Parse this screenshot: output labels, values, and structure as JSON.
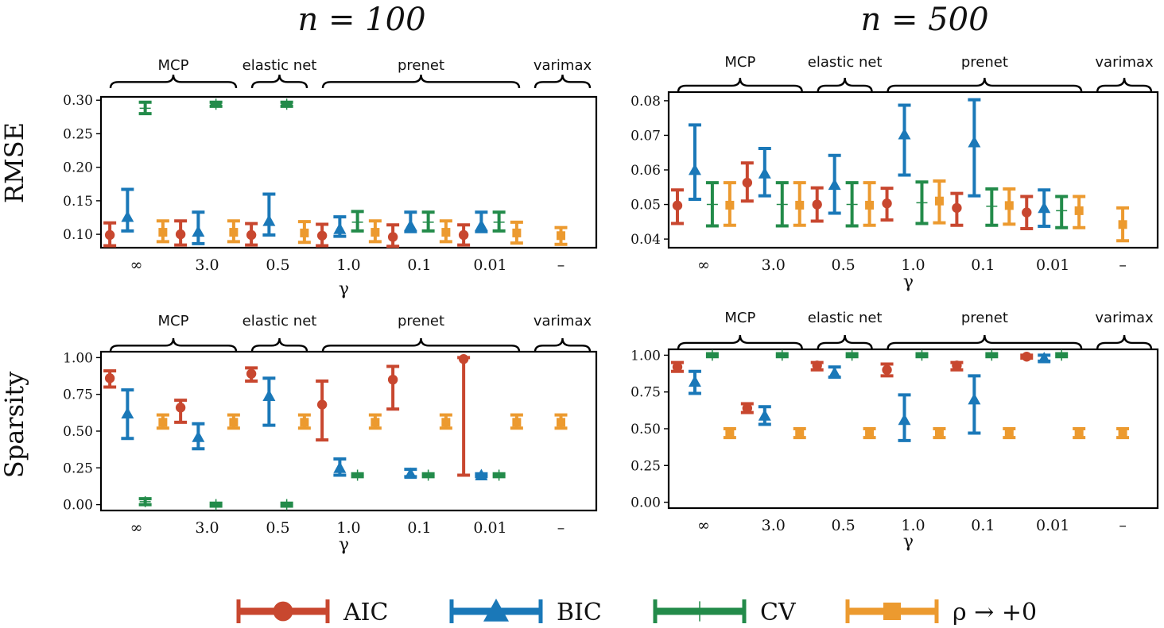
{
  "colors": {
    "AIC": "#c8472f",
    "BIC": "#1a78b8",
    "CV": "#238b4a",
    "rho": "#ec9a2f"
  },
  "legend": [
    {
      "key": "AIC",
      "label": "AIC",
      "marker": "circle"
    },
    {
      "key": "BIC",
      "label": "BIC",
      "marker": "triangle"
    },
    {
      "key": "CV",
      "label": "CV",
      "marker": "plus"
    },
    {
      "key": "rho",
      "label": "ρ → +0",
      "marker": "square"
    }
  ],
  "column_titles": [
    "n = 100",
    "n = 500"
  ],
  "row_labels": [
    "RMSE",
    "Sparsity"
  ],
  "chart_data": [
    {
      "type": "scatter",
      "panel": "RMSE, n = 100",
      "xlabel": "γ",
      "ylabel": "RMSE",
      "ylim": [
        0.08,
        0.305
      ],
      "yticks": [
        "0.10",
        "0.15",
        "0.20",
        "0.25",
        "0.30"
      ],
      "categories": [
        "∞",
        "3.0",
        "0.5",
        "1.0",
        "0.1",
        "0.01",
        "–"
      ],
      "groups": [
        {
          "label": "MCP",
          "from": 0,
          "to": 1
        },
        {
          "label": "elastic net",
          "from": 2,
          "to": 2
        },
        {
          "label": "prenet",
          "from": 3,
          "to": 5
        },
        {
          "label": "varimax",
          "from": 6,
          "to": 6
        }
      ],
      "series": [
        {
          "name": "AIC",
          "points": [
            {
              "x": "∞",
              "y": 0.099,
              "lo": 0.083,
              "hi": 0.117
            },
            {
              "x": "3.0",
              "y": 0.1,
              "lo": 0.084,
              "hi": 0.12
            },
            {
              "x": "0.5",
              "y": 0.099,
              "lo": 0.084,
              "hi": 0.116
            },
            {
              "x": "1.0",
              "y": 0.098,
              "lo": 0.083,
              "hi": 0.115
            },
            {
              "x": "0.1",
              "y": 0.096,
              "lo": 0.082,
              "hi": 0.114
            },
            {
              "x": "0.01",
              "y": 0.099,
              "lo": 0.084,
              "hi": 0.114
            }
          ]
        },
        {
          "name": "BIC",
          "points": [
            {
              "x": "∞",
              "y": 0.126,
              "lo": 0.105,
              "hi": 0.167
            },
            {
              "x": "3.0",
              "y": 0.104,
              "lo": 0.086,
              "hi": 0.133
            },
            {
              "x": "0.5",
              "y": 0.12,
              "lo": 0.099,
              "hi": 0.16
            },
            {
              "x": "1.0",
              "y": 0.108,
              "lo": 0.097,
              "hi": 0.126
            },
            {
              "x": "0.1",
              "y": 0.113,
              "lo": 0.104,
              "hi": 0.133
            },
            {
              "x": "0.01",
              "y": 0.113,
              "lo": 0.104,
              "hi": 0.133
            }
          ]
        },
        {
          "name": "CV",
          "points": [
            {
              "x": "∞",
              "y": 0.288,
              "lo": 0.28,
              "hi": 0.297
            },
            {
              "x": "3.0",
              "y": 0.294,
              "lo": 0.291,
              "hi": 0.297
            },
            {
              "x": "0.5",
              "y": 0.294,
              "lo": 0.291,
              "hi": 0.297
            },
            {
              "x": "1.0",
              "y": 0.118,
              "lo": 0.105,
              "hi": 0.134
            },
            {
              "x": "0.1",
              "y": 0.118,
              "lo": 0.105,
              "hi": 0.133
            },
            {
              "x": "0.01",
              "y": 0.118,
              "lo": 0.105,
              "hi": 0.133
            }
          ]
        },
        {
          "name": "ρ → +0",
          "points": [
            {
              "x": "∞",
              "y": 0.103,
              "lo": 0.089,
              "hi": 0.12
            },
            {
              "x": "3.0",
              "y": 0.103,
              "lo": 0.089,
              "hi": 0.12
            },
            {
              "x": "0.5",
              "y": 0.102,
              "lo": 0.088,
              "hi": 0.119
            },
            {
              "x": "1.0",
              "y": 0.103,
              "lo": 0.089,
              "hi": 0.12
            },
            {
              "x": "0.1",
              "y": 0.103,
              "lo": 0.089,
              "hi": 0.12
            },
            {
              "x": "0.01",
              "y": 0.102,
              "lo": 0.087,
              "hi": 0.118
            },
            {
              "x": "–",
              "y": 0.098,
              "lo": 0.085,
              "hi": 0.11
            }
          ]
        }
      ]
    },
    {
      "type": "scatter",
      "panel": "RMSE, n = 500",
      "xlabel": "γ",
      "ylabel": "RMSE",
      "ylim": [
        0.0375,
        0.0825
      ],
      "yticks": [
        "0.04",
        "0.05",
        "0.06",
        "0.07",
        "0.08"
      ],
      "categories": [
        "∞",
        "3.0",
        "0.5",
        "1.0",
        "0.1",
        "0.01",
        "–"
      ],
      "groups": [
        {
          "label": "MCP",
          "from": 0,
          "to": 1
        },
        {
          "label": "elastic net",
          "from": 2,
          "to": 2
        },
        {
          "label": "prenet",
          "from": 3,
          "to": 5
        },
        {
          "label": "varimax",
          "from": 6,
          "to": 6
        }
      ],
      "series": [
        {
          "name": "AIC",
          "points": [
            {
              "x": "∞",
              "y": 0.0497,
              "lo": 0.0445,
              "hi": 0.0542
            },
            {
              "x": "3.0",
              "y": 0.0563,
              "lo": 0.051,
              "hi": 0.062
            },
            {
              "x": "0.5",
              "y": 0.05,
              "lo": 0.0452,
              "hi": 0.0548
            },
            {
              "x": "1.0",
              "y": 0.0503,
              "lo": 0.0455,
              "hi": 0.0547
            },
            {
              "x": "0.1",
              "y": 0.049,
              "lo": 0.044,
              "hi": 0.0532
            },
            {
              "x": "0.01",
              "y": 0.0477,
              "lo": 0.043,
              "hi": 0.0523
            }
          ]
        },
        {
          "name": "BIC",
          "points": [
            {
              "x": "∞",
              "y": 0.06,
              "lo": 0.0515,
              "hi": 0.073
            },
            {
              "x": "3.0",
              "y": 0.059,
              "lo": 0.0525,
              "hi": 0.0662
            },
            {
              "x": "0.5",
              "y": 0.0557,
              "lo": 0.0475,
              "hi": 0.0642
            },
            {
              "x": "1.0",
              "y": 0.0703,
              "lo": 0.0585,
              "hi": 0.0787
            },
            {
              "x": "0.1",
              "y": 0.068,
              "lo": 0.0525,
              "hi": 0.0803
            },
            {
              "x": "0.01",
              "y": 0.049,
              "lo": 0.0437,
              "hi": 0.0542
            }
          ]
        },
        {
          "name": "CV",
          "points": [
            {
              "x": "∞",
              "y": 0.05,
              "lo": 0.0438,
              "hi": 0.0563
            },
            {
              "x": "3.0",
              "y": 0.05,
              "lo": 0.0438,
              "hi": 0.0563
            },
            {
              "x": "0.5",
              "y": 0.05,
              "lo": 0.0438,
              "hi": 0.0563
            },
            {
              "x": "1.0",
              "y": 0.0505,
              "lo": 0.0445,
              "hi": 0.0565
            },
            {
              "x": "0.1",
              "y": 0.0495,
              "lo": 0.044,
              "hi": 0.0545
            },
            {
              "x": "0.01",
              "y": 0.0482,
              "lo": 0.0433,
              "hi": 0.0523
            }
          ]
        },
        {
          "name": "ρ → +0",
          "points": [
            {
              "x": "∞",
              "y": 0.0498,
              "lo": 0.044,
              "hi": 0.0563
            },
            {
              "x": "3.0",
              "y": 0.0498,
              "lo": 0.044,
              "hi": 0.0563
            },
            {
              "x": "0.5",
              "y": 0.0498,
              "lo": 0.044,
              "hi": 0.0563
            },
            {
              "x": "1.0",
              "y": 0.051,
              "lo": 0.0447,
              "hi": 0.0568
            },
            {
              "x": "0.1",
              "y": 0.0497,
              "lo": 0.0443,
              "hi": 0.0545
            },
            {
              "x": "0.01",
              "y": 0.0482,
              "lo": 0.0433,
              "hi": 0.0523
            },
            {
              "x": "–",
              "y": 0.0442,
              "lo": 0.0395,
              "hi": 0.049
            }
          ]
        }
      ]
    },
    {
      "type": "scatter",
      "panel": "Sparsity, n = 100",
      "xlabel": "γ",
      "ylabel": "Sparsity",
      "ylim": [
        -0.04,
        1.04
      ],
      "yticks": [
        "0.00",
        "0.25",
        "0.50",
        "0.75",
        "1.00"
      ],
      "categories": [
        "∞",
        "3.0",
        "0.5",
        "1.0",
        "0.1",
        "0.01",
        "–"
      ],
      "groups": [
        {
          "label": "MCP",
          "from": 0,
          "to": 1
        },
        {
          "label": "elastic net",
          "from": 2,
          "to": 2
        },
        {
          "label": "prenet",
          "from": 3,
          "to": 5
        },
        {
          "label": "varimax",
          "from": 6,
          "to": 6
        }
      ],
      "series": [
        {
          "name": "AIC",
          "points": [
            {
              "x": "∞",
              "y": 0.86,
              "lo": 0.8,
              "hi": 0.91
            },
            {
              "x": "3.0",
              "y": 0.66,
              "lo": 0.56,
              "hi": 0.71
            },
            {
              "x": "0.5",
              "y": 0.89,
              "lo": 0.84,
              "hi": 0.93
            },
            {
              "x": "1.0",
              "y": 0.68,
              "lo": 0.44,
              "hi": 0.84
            },
            {
              "x": "0.1",
              "y": 0.85,
              "lo": 0.65,
              "hi": 0.94
            },
            {
              "x": "0.01",
              "y": 0.99,
              "lo": 0.2,
              "hi": 1.0
            }
          ]
        },
        {
          "name": "BIC",
          "points": [
            {
              "x": "∞",
              "y": 0.62,
              "lo": 0.45,
              "hi": 0.78
            },
            {
              "x": "3.0",
              "y": 0.46,
              "lo": 0.38,
              "hi": 0.55
            },
            {
              "x": "0.5",
              "y": 0.74,
              "lo": 0.54,
              "hi": 0.86
            },
            {
              "x": "1.0",
              "y": 0.25,
              "lo": 0.2,
              "hi": 0.31
            },
            {
              "x": "0.1",
              "y": 0.21,
              "lo": 0.19,
              "hi": 0.24
            },
            {
              "x": "0.01",
              "y": 0.2,
              "lo": 0.19,
              "hi": 0.21
            }
          ]
        },
        {
          "name": "CV",
          "points": [
            {
              "x": "∞",
              "y": 0.02,
              "lo": 0.0,
              "hi": 0.04
            },
            {
              "x": "3.0",
              "y": 0.0,
              "lo": -0.01,
              "hi": 0.01
            },
            {
              "x": "0.5",
              "y": 0.0,
              "lo": -0.01,
              "hi": 0.01
            },
            {
              "x": "1.0",
              "y": 0.2,
              "lo": 0.19,
              "hi": 0.21
            },
            {
              "x": "0.1",
              "y": 0.2,
              "lo": 0.19,
              "hi": 0.21
            },
            {
              "x": "0.01",
              "y": 0.2,
              "lo": 0.19,
              "hi": 0.21
            }
          ]
        },
        {
          "name": "ρ → +0",
          "points": [
            {
              "x": "∞",
              "y": 0.56,
              "lo": 0.52,
              "hi": 0.61
            },
            {
              "x": "3.0",
              "y": 0.56,
              "lo": 0.52,
              "hi": 0.61
            },
            {
              "x": "0.5",
              "y": 0.56,
              "lo": 0.52,
              "hi": 0.61
            },
            {
              "x": "1.0",
              "y": 0.56,
              "lo": 0.52,
              "hi": 0.61
            },
            {
              "x": "0.1",
              "y": 0.56,
              "lo": 0.52,
              "hi": 0.61
            },
            {
              "x": "0.01",
              "y": 0.56,
              "lo": 0.52,
              "hi": 0.61
            },
            {
              "x": "–",
              "y": 0.56,
              "lo": 0.52,
              "hi": 0.61
            }
          ]
        }
      ]
    },
    {
      "type": "scatter",
      "panel": "Sparsity, n = 500",
      "xlabel": "γ",
      "ylabel": "Sparsity",
      "ylim": [
        -0.04,
        1.04
      ],
      "yticks": [
        "0.00",
        "0.25",
        "0.50",
        "0.75",
        "1.00"
      ],
      "categories": [
        "∞",
        "3.0",
        "0.5",
        "1.0",
        "0.1",
        "0.01",
        "–"
      ],
      "groups": [
        {
          "label": "MCP",
          "from": 0,
          "to": 1
        },
        {
          "label": "elastic net",
          "from": 2,
          "to": 2
        },
        {
          "label": "prenet",
          "from": 3,
          "to": 5
        },
        {
          "label": "varimax",
          "from": 6,
          "to": 6
        }
      ],
      "series": [
        {
          "name": "AIC",
          "points": [
            {
              "x": "∞",
              "y": 0.92,
              "lo": 0.89,
              "hi": 0.95
            },
            {
              "x": "3.0",
              "y": 0.64,
              "lo": 0.61,
              "hi": 0.67
            },
            {
              "x": "0.5",
              "y": 0.93,
              "lo": 0.9,
              "hi": 0.95
            },
            {
              "x": "1.0",
              "y": 0.9,
              "lo": 0.86,
              "hi": 0.94
            },
            {
              "x": "0.1",
              "y": 0.93,
              "lo": 0.9,
              "hi": 0.95
            },
            {
              "x": "0.01",
              "y": 0.99,
              "lo": 0.98,
              "hi": 1.0
            }
          ]
        },
        {
          "name": "BIC",
          "points": [
            {
              "x": "∞",
              "y": 0.82,
              "lo": 0.74,
              "hi": 0.89
            },
            {
              "x": "3.0",
              "y": 0.59,
              "lo": 0.53,
              "hi": 0.65
            },
            {
              "x": "0.5",
              "y": 0.88,
              "lo": 0.85,
              "hi": 0.92
            },
            {
              "x": "1.0",
              "y": 0.56,
              "lo": 0.42,
              "hi": 0.73
            },
            {
              "x": "0.1",
              "y": 0.7,
              "lo": 0.47,
              "hi": 0.86
            },
            {
              "x": "0.01",
              "y": 0.98,
              "lo": 0.96,
              "hi": 1.0
            }
          ]
        },
        {
          "name": "CV",
          "points": [
            {
              "x": "∞",
              "y": 1.0,
              "lo": 0.99,
              "hi": 1.01
            },
            {
              "x": "3.0",
              "y": 1.0,
              "lo": 0.99,
              "hi": 1.01
            },
            {
              "x": "0.5",
              "y": 1.0,
              "lo": 0.99,
              "hi": 1.01
            },
            {
              "x": "1.0",
              "y": 1.0,
              "lo": 0.99,
              "hi": 1.01
            },
            {
              "x": "0.1",
              "y": 1.0,
              "lo": 0.99,
              "hi": 1.01
            },
            {
              "x": "0.01",
              "y": 1.0,
              "lo": 0.99,
              "hi": 1.01
            }
          ]
        },
        {
          "name": "ρ → +0",
          "points": [
            {
              "x": "∞",
              "y": 0.47,
              "lo": 0.44,
              "hi": 0.5
            },
            {
              "x": "3.0",
              "y": 0.47,
              "lo": 0.44,
              "hi": 0.5
            },
            {
              "x": "0.5",
              "y": 0.47,
              "lo": 0.44,
              "hi": 0.5
            },
            {
              "x": "1.0",
              "y": 0.47,
              "lo": 0.44,
              "hi": 0.5
            },
            {
              "x": "0.1",
              "y": 0.47,
              "lo": 0.44,
              "hi": 0.5
            },
            {
              "x": "0.01",
              "y": 0.47,
              "lo": 0.44,
              "hi": 0.5
            },
            {
              "x": "–",
              "y": 0.47,
              "lo": 0.44,
              "hi": 0.5
            }
          ]
        }
      ]
    }
  ]
}
